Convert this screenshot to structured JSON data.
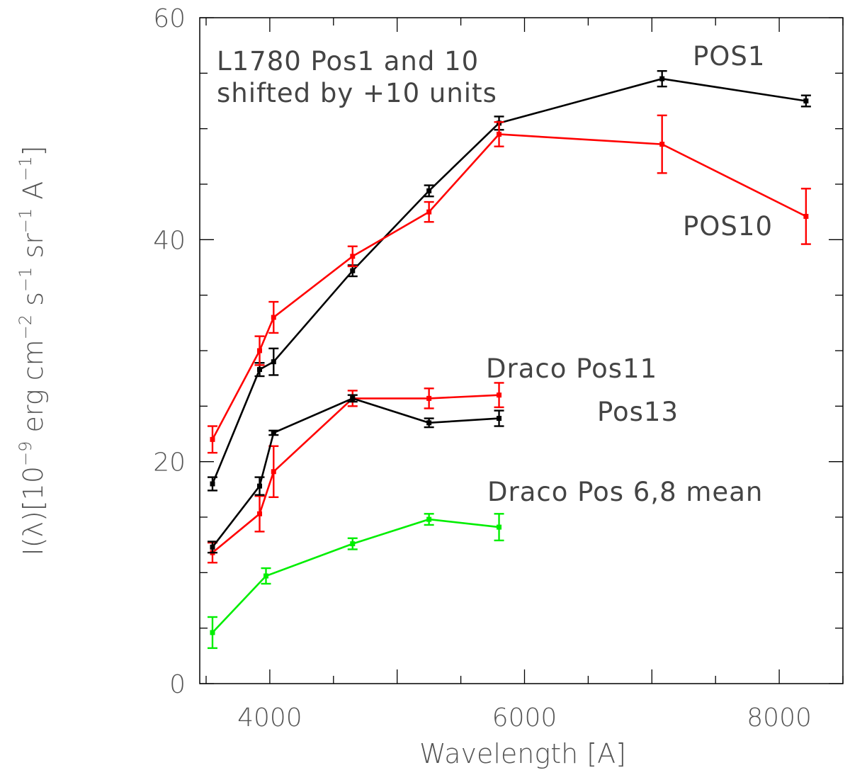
{
  "chart_data": {
    "type": "line",
    "title": "",
    "xlabel": "Wavelength [A]",
    "ylabel": "I(λ)[10^-9 erg cm^-2 s^-1 sr^-1 A^-1]",
    "ylabel_parts": {
      "prefix": "I(λ)[10",
      "exp1": "−9",
      "mid1": " erg cm",
      "exp2": "−2",
      "mid2": " s",
      "exp3": "−1",
      "mid3": " sr",
      "exp4": "−1",
      "mid4": " A",
      "exp5": "−1",
      "suffix": "]"
    },
    "xlim": [
      3450,
      8500
    ],
    "ylim": [
      0,
      60
    ],
    "x_ticks": [
      4000,
      6000,
      8000
    ],
    "x_tick_labels": [
      "4000",
      "6000",
      "8000"
    ],
    "y_ticks": [
      0,
      20,
      40,
      60
    ],
    "y_tick_labels": [
      "0",
      "20",
      "40",
      "60"
    ],
    "grid": false,
    "annotations": {
      "l1780_line1": "L1780 Pos1 and 10",
      "l1780_line2": "shifted by +10 units",
      "pos1": "POS1",
      "pos10": "POS10",
      "draco_pos11": "Draco Pos11",
      "pos13": "Pos13",
      "draco_mean": "Draco Pos 6,8 mean"
    },
    "colors": {
      "black": "#000000",
      "red": "#ff0000",
      "green": "#00ee00"
    },
    "series": [
      {
        "name": "L1780 POS1 (+10)",
        "color": "#000000",
        "x": [
          3550,
          3920,
          4030,
          4650,
          5250,
          5800,
          7080,
          8210
        ],
        "y": [
          18.0,
          28.3,
          29.0,
          37.2,
          44.4,
          50.5,
          54.5,
          52.5
        ],
        "err": [
          0.6,
          0.6,
          1.2,
          0.5,
          0.5,
          0.6,
          0.7,
          0.5
        ]
      },
      {
        "name": "L1780 POS10 (+10)",
        "color": "#ff0000",
        "x": [
          3550,
          3920,
          4030,
          4650,
          5250,
          5800,
          7080,
          8210
        ],
        "y": [
          22.0,
          30.0,
          33.0,
          38.5,
          42.5,
          49.5,
          48.6,
          42.1
        ],
        "err": [
          1.2,
          1.3,
          1.4,
          0.9,
          0.9,
          1.1,
          2.6,
          2.5
        ]
      },
      {
        "name": "Draco Pos11",
        "color": "#ff0000",
        "x": [
          3550,
          3920,
          4030,
          4650,
          5250,
          5800
        ],
        "y": [
          11.8,
          15.3,
          19.1,
          25.7,
          25.7,
          26.0
        ],
        "err": [
          0.9,
          1.6,
          2.3,
          0.7,
          0.9,
          1.1
        ]
      },
      {
        "name": "Draco Pos13",
        "color": "#000000",
        "x": [
          3550,
          3920,
          4030,
          4650,
          5250,
          5800
        ],
        "y": [
          12.3,
          17.8,
          22.6,
          25.7,
          23.5,
          23.9
        ],
        "err": [
          0.5,
          0.8,
          0.2,
          0.3,
          0.4,
          0.7
        ]
      },
      {
        "name": "Draco Pos 6,8 mean",
        "color": "#00ee00",
        "x": [
          3550,
          3970,
          4650,
          5250,
          5800
        ],
        "y": [
          4.6,
          9.7,
          12.6,
          14.8,
          14.1
        ],
        "err": [
          1.4,
          0.7,
          0.5,
          0.5,
          1.2
        ]
      }
    ]
  }
}
